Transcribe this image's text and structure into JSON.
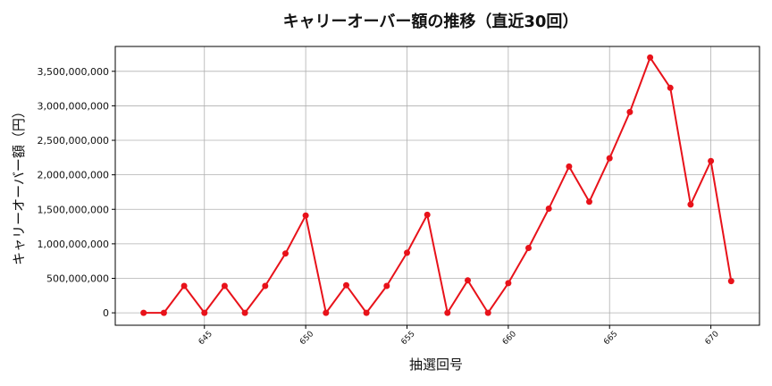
{
  "chart_data": {
    "type": "line",
    "title": "キャリーオーバー額の推移（直近30回）",
    "xlabel": "抽選回号",
    "ylabel": "キャリーオーバー額（円）",
    "xlim": [
      640.6,
      672.4
    ],
    "ylim": [
      -180000000,
      3860000000
    ],
    "grid": true,
    "xticks": [
      645,
      650,
      655,
      660,
      665,
      670
    ],
    "yticks": [
      0,
      500000000,
      1000000000,
      1500000000,
      2000000000,
      2500000000,
      3000000000,
      3500000000
    ],
    "ytick_labels": [
      "0",
      "500,000,000",
      "1,000,000,000",
      "1,500,000,000",
      "2,000,000,000",
      "2,500,000,000",
      "3,000,000,000",
      "3,500,000,000"
    ],
    "series": [
      {
        "color": "#e8121a",
        "x": [
          642,
          643,
          644,
          645,
          646,
          647,
          648,
          649,
          650,
          651,
          652,
          653,
          654,
          655,
          656,
          657,
          658,
          659,
          660,
          661,
          662,
          663,
          664,
          665,
          666,
          667,
          668,
          669,
          670,
          671
        ],
        "y": [
          0,
          0,
          390000000,
          0,
          390000000,
          0,
          390000000,
          860000000,
          1410000000,
          0,
          400000000,
          0,
          390000000,
          870000000,
          1420000000,
          0,
          470000000,
          0,
          430000000,
          940000000,
          1510000000,
          2120000000,
          1610000000,
          2240000000,
          2910000000,
          3700000000,
          3260000000,
          1570000000,
          2200000000,
          460000000
        ]
      }
    ]
  }
}
